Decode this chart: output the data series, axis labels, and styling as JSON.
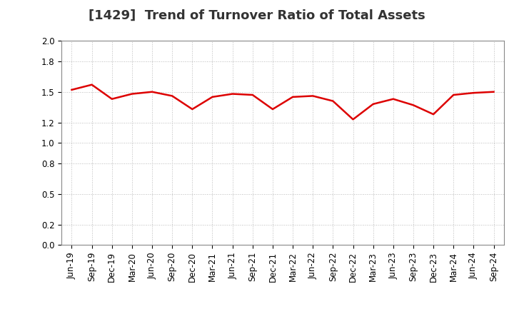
{
  "title": "[1429]  Trend of Turnover Ratio of Total Assets",
  "x_labels": [
    "Jun-19",
    "Sep-19",
    "Dec-19",
    "Mar-20",
    "Jun-20",
    "Sep-20",
    "Dec-20",
    "Mar-21",
    "Jun-21",
    "Sep-21",
    "Dec-21",
    "Mar-22",
    "Jun-22",
    "Sep-22",
    "Dec-22",
    "Mar-23",
    "Jun-23",
    "Sep-23",
    "Dec-23",
    "Mar-24",
    "Jun-24",
    "Sep-24"
  ],
  "y_values": [
    1.52,
    1.57,
    1.43,
    1.48,
    1.5,
    1.46,
    1.33,
    1.45,
    1.48,
    1.47,
    1.33,
    1.45,
    1.46,
    1.41,
    1.23,
    1.38,
    1.43,
    1.37,
    1.28,
    1.47,
    1.49,
    1.5
  ],
  "line_color": "#dd0000",
  "line_width": 1.8,
  "ylim": [
    0.0,
    2.0
  ],
  "yticks": [
    0.0,
    0.2,
    0.5,
    0.8,
    1.0,
    1.2,
    1.5,
    1.8,
    2.0
  ],
  "grid_color": "#bbbbbb",
  "bg_color": "#ffffff",
  "title_fontsize": 13,
  "tick_fontsize": 8.5
}
